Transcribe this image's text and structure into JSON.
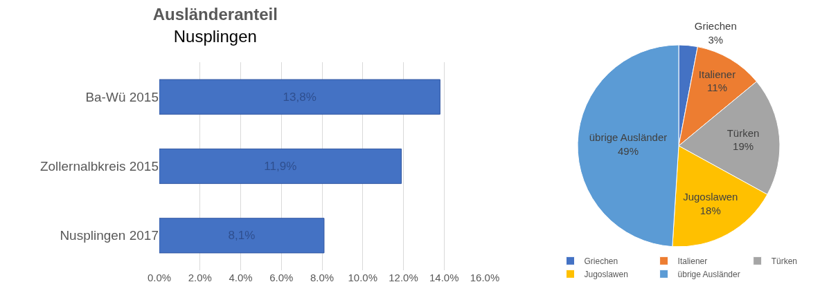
{
  "chart_data": [
    {
      "type": "bar",
      "title": "Ausländeranteil",
      "subtitle": "Nusplingen",
      "orientation": "horizontal",
      "categories": [
        "Ba-Wü 2015",
        "Zollernalbkreis 2015",
        "Nusplingen 2017"
      ],
      "values": [
        13.8,
        11.9,
        8.1
      ],
      "value_labels": [
        "13,8%",
        "11,9%",
        "8,1%"
      ],
      "color": "#4472c4",
      "xlim": [
        0,
        16
      ],
      "xticks": [
        {
          "value": 0,
          "label": "0.0%"
        },
        {
          "value": 2,
          "label": "2.0%"
        },
        {
          "value": 4,
          "label": "4.0%"
        },
        {
          "value": 6,
          "label": "6.0%"
        },
        {
          "value": 8,
          "label": "8.0%"
        },
        {
          "value": 10,
          "label": "10.0%"
        },
        {
          "value": 12,
          "label": "12.0%"
        },
        {
          "value": 14,
          "label": "14.0%"
        },
        {
          "value": 16,
          "label": "16.0%"
        }
      ],
      "grid": "x",
      "legend": false
    },
    {
      "type": "pie",
      "categories": [
        "Griechen",
        "Italiener",
        "Türken",
        "Jugoslawen",
        "übrige Ausländer"
      ],
      "values": [
        3,
        11,
        19,
        18,
        49
      ],
      "colors": [
        "#4472c4",
        "#ed7d31",
        "#a5a5a5",
        "#ffc000",
        "#5b9bd5"
      ],
      "value_labels": [
        "3%",
        "11%",
        "19%",
        "18%",
        "49%"
      ],
      "legend": "bottom"
    }
  ]
}
